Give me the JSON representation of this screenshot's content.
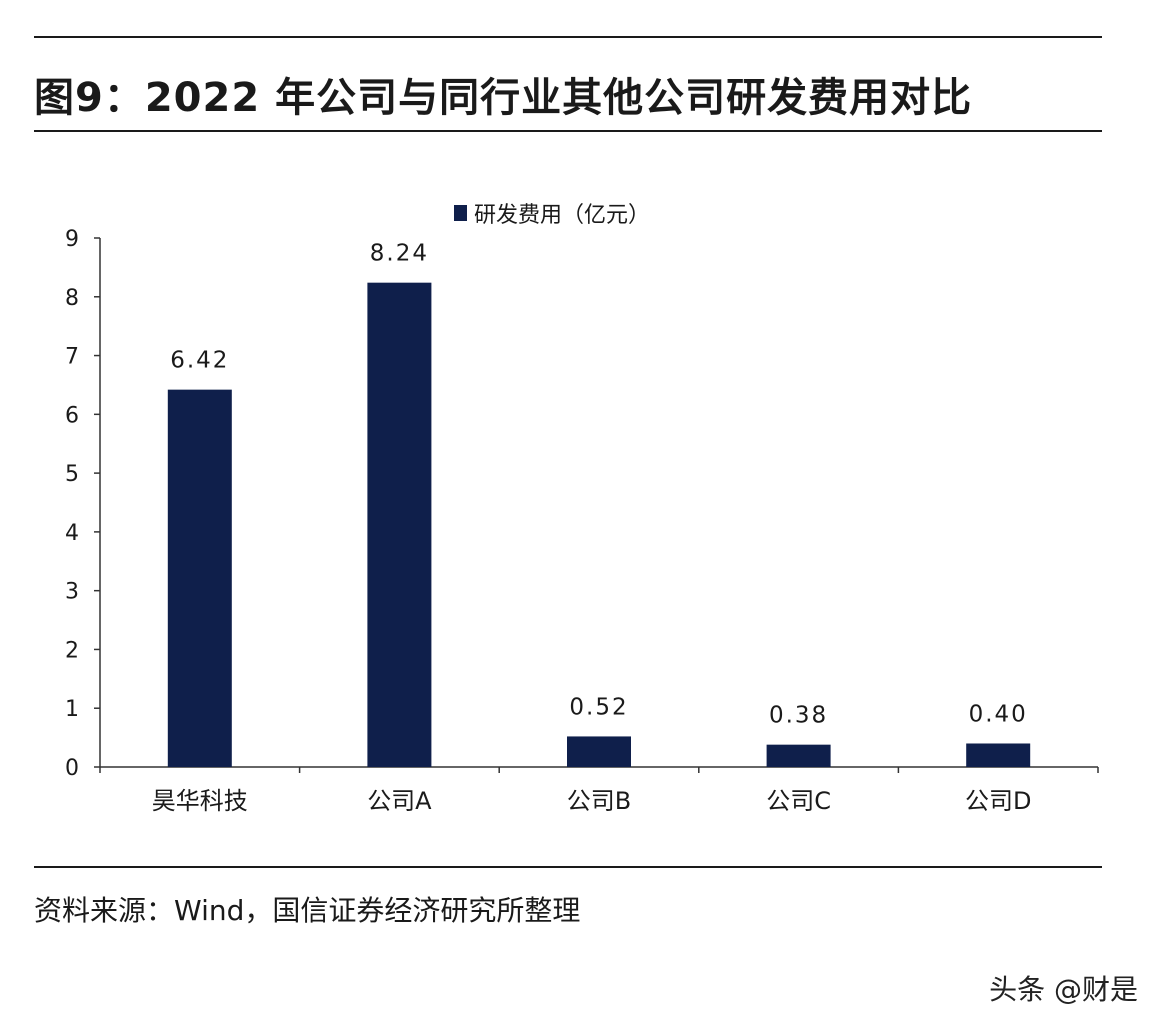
{
  "header": {
    "title": "图9：2022 年公司与同行业其他公司研发费用对比"
  },
  "footer": {
    "source": "资料来源：Wind，国信证券经济研究所整理",
    "watermark": "头条 @财是"
  },
  "colors": {
    "bar": "#0f1f4b",
    "axis": "#333333",
    "text": "#1a1a1a"
  },
  "chart_data": {
    "type": "bar",
    "title": "",
    "xlabel": "",
    "ylabel": "",
    "categories": [
      "昊华科技",
      "公司A",
      "公司B",
      "公司C",
      "公司D"
    ],
    "series": [
      {
        "name": "研发费用（亿元）",
        "values": [
          6.42,
          8.24,
          0.52,
          0.38,
          0.4
        ],
        "labels": [
          "6.42",
          "8.24",
          "0.52",
          "0.38",
          "0.40"
        ]
      }
    ],
    "ylim": [
      0,
      9
    ],
    "yticks": [
      "0",
      "1",
      "2",
      "3",
      "4",
      "5",
      "6",
      "7",
      "8",
      "9"
    ],
    "grid": false,
    "legend_position": "top-center"
  }
}
